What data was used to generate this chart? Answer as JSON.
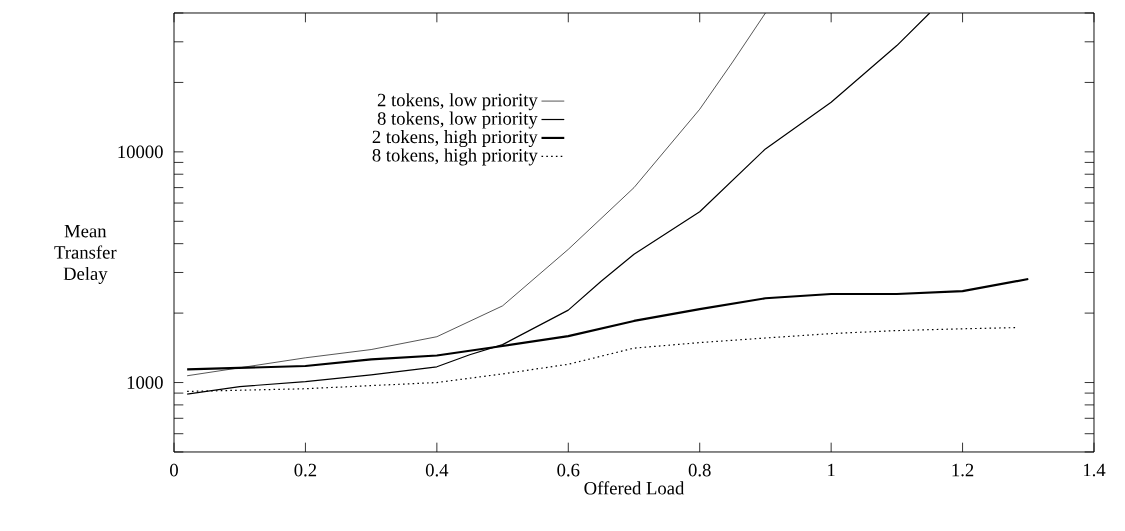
{
  "chart_data": {
    "type": "line",
    "xlabel": "Offered Load",
    "ylabel": "Mean Transfer Delay",
    "log": "y",
    "legend": "top left",
    "xlim": [
      0,
      1.4
    ],
    "ylim": [
      500,
      40000
    ],
    "xticks": [
      0,
      0.2,
      0.4,
      0.6,
      0.8,
      1,
      1.2,
      1.4
    ],
    "yticks": [
      {
        "value": 500,
        "label": null
      },
      {
        "value": 600,
        "label": null
      },
      {
        "value": 700,
        "label": null
      },
      {
        "value": 800,
        "label": null
      },
      {
        "value": 900,
        "label": null
      },
      1000,
      {
        "value": 2000,
        "label": null
      },
      {
        "value": 3000,
        "label": null
      },
      {
        "value": 4000,
        "label": null
      },
      {
        "value": 5000,
        "label": null
      },
      {
        "value": 6000,
        "label": null
      },
      {
        "value": 7000,
        "label": null
      },
      {
        "value": 8000,
        "label": null
      },
      {
        "value": 9000,
        "label": null
      },
      10000,
      {
        "value": 20000,
        "label": null
      },
      {
        "value": 30000,
        "label": null
      },
      {
        "value": 40000,
        "label": null
      }
    ],
    "series": [
      {
        "name": "2 tokens, low priority",
        "color": "#000000",
        "line_style": "solid",
        "x": [
          0.02,
          0.2,
          0.3,
          0.4,
          0.5,
          0.6,
          0.7,
          0.8,
          0.85,
          0.9
        ],
        "values": [
          1070,
          1280,
          1390,
          1580,
          2150,
          3780,
          7000,
          15300,
          24500,
          40000
        ]
      },
      {
        "name": "8 tokens, low priority",
        "color": "#000000",
        "line_style": "solid",
        "x": [
          0.02,
          0.1,
          0.2,
          0.3,
          0.4,
          0.45,
          0.5,
          0.6,
          0.65,
          0.7,
          0.8,
          0.9,
          1.0,
          1.1,
          1.15
        ],
        "values": [
          890,
          960,
          1010,
          1080,
          1170,
          1320,
          1460,
          2060,
          2750,
          3600,
          5500,
          10300,
          16400,
          28900,
          40000
        ]
      },
      {
        "name": "2 tokens, high priority",
        "color": "#000000",
        "line_style": "solid",
        "x": [
          0.02,
          0.2,
          0.3,
          0.4,
          0.5,
          0.6,
          0.7,
          0.8,
          0.9,
          1.0,
          1.1,
          1.2,
          1.3
        ],
        "values": [
          1140,
          1180,
          1260,
          1310,
          1440,
          1590,
          1850,
          2080,
          2320,
          2420,
          2420,
          2490,
          2810
        ]
      },
      {
        "name": "8 tokens, high priority",
        "color": "#000000",
        "line_style": "dotted",
        "x": [
          0.02,
          0.2,
          0.3,
          0.4,
          0.5,
          0.6,
          0.7,
          0.8,
          0.9,
          1.0,
          1.1,
          1.2,
          1.28
        ],
        "values": [
          915,
          940,
          970,
          1000,
          1090,
          1200,
          1410,
          1490,
          1560,
          1630,
          1680,
          1710,
          1730
        ]
      }
    ]
  }
}
